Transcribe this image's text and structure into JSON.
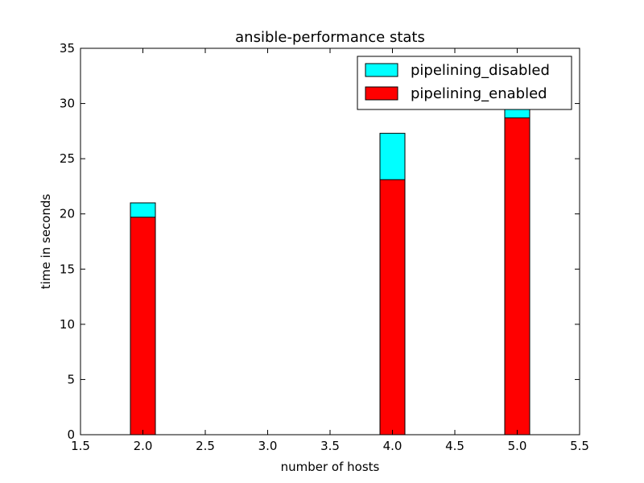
{
  "chart_data": {
    "type": "bar",
    "stacked": false,
    "overlaid": true,
    "title": "ansible-performance stats",
    "xlabel": "number of hosts",
    "ylabel": "time in seconds",
    "xlim": [
      1.5,
      5.5
    ],
    "ylim": [
      0,
      35
    ],
    "xticks": [
      "1.5",
      "2.0",
      "2.5",
      "3.0",
      "3.5",
      "4.0",
      "4.5",
      "5.0",
      "5.5"
    ],
    "yticks": [
      "0",
      "5",
      "10",
      "15",
      "20",
      "25",
      "30",
      "35"
    ],
    "bar_width": 0.2,
    "x": [
      2.0,
      4.0,
      5.0
    ],
    "series": [
      {
        "name": "pipelining_disabled",
        "color": "#00ffff",
        "values": [
          21.0,
          27.3,
          30.0
        ]
      },
      {
        "name": "pipelining_enabled",
        "color": "#ff0000",
        "values": [
          19.7,
          23.1,
          28.7
        ]
      }
    ],
    "legend_position": "top-right",
    "grid": false
  }
}
